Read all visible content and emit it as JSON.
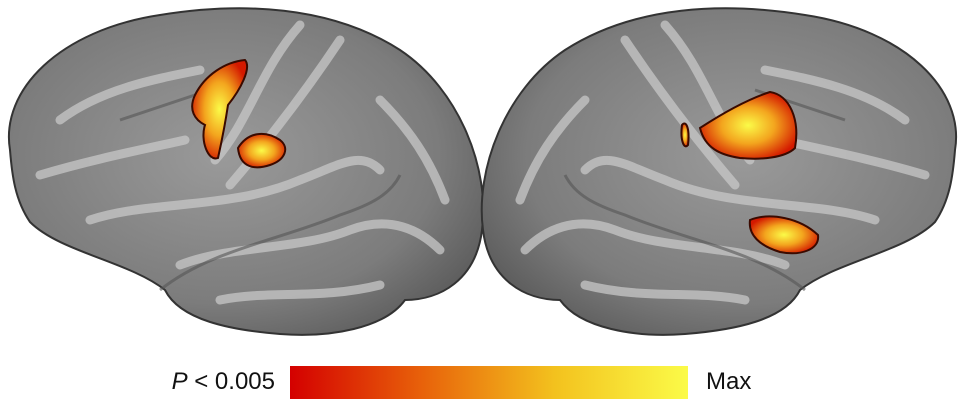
{
  "colorbar": {
    "min_label": {
      "variable": "P",
      "threshold": "< 0.005"
    },
    "max_label": "Max",
    "colors": [
      "#d40000",
      "#e8620a",
      "#f3c21e",
      "#fbfb48"
    ]
  }
}
